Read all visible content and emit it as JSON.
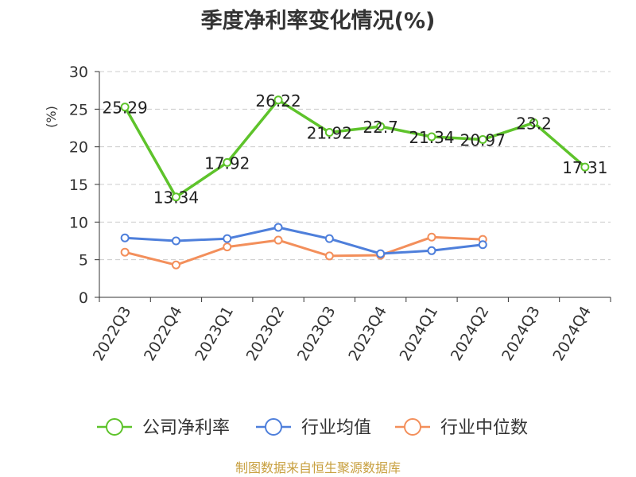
{
  "chart_data": {
    "type": "line",
    "title": "季度净利率变化情况(%)",
    "ylabel": "(%)",
    "xlabel": "",
    "ylim": [
      0,
      30
    ],
    "yticks": [
      0,
      5,
      10,
      15,
      20,
      25,
      30
    ],
    "grid": true,
    "legend_position": "bottom",
    "categories": [
      "2022Q3",
      "2022Q4",
      "2023Q1",
      "2023Q2",
      "2023Q3",
      "2023Q4",
      "2024Q1",
      "2024Q2",
      "2024Q3",
      "2024Q4"
    ],
    "series": [
      {
        "name": "公司净利率",
        "color": "#5ec32b",
        "values": [
          25.29,
          13.34,
          17.92,
          26.22,
          21.92,
          22.7,
          21.34,
          20.97,
          23.2,
          17.31
        ],
        "labels": [
          "25.29",
          "13.34",
          "17.92",
          "26.22",
          "21.92",
          "22.7",
          "21.34",
          "20.97",
          "23.2",
          "17.31"
        ]
      },
      {
        "name": "行业均值",
        "color": "#4e7fdb",
        "values": [
          7.9,
          7.5,
          7.8,
          9.3,
          7.8,
          5.8,
          6.2,
          7.0,
          null,
          null
        ]
      },
      {
        "name": "行业中位数",
        "color": "#f38f5b",
        "values": [
          6.0,
          4.3,
          6.7,
          7.6,
          5.5,
          5.6,
          8.0,
          7.7,
          null,
          null
        ]
      }
    ]
  },
  "source": "制图数据来自恒生聚源数据库",
  "colors": {
    "axis": "#333333",
    "grid": "#cccccc",
    "ylabel": "#e02020",
    "source": "#c8a040"
  }
}
